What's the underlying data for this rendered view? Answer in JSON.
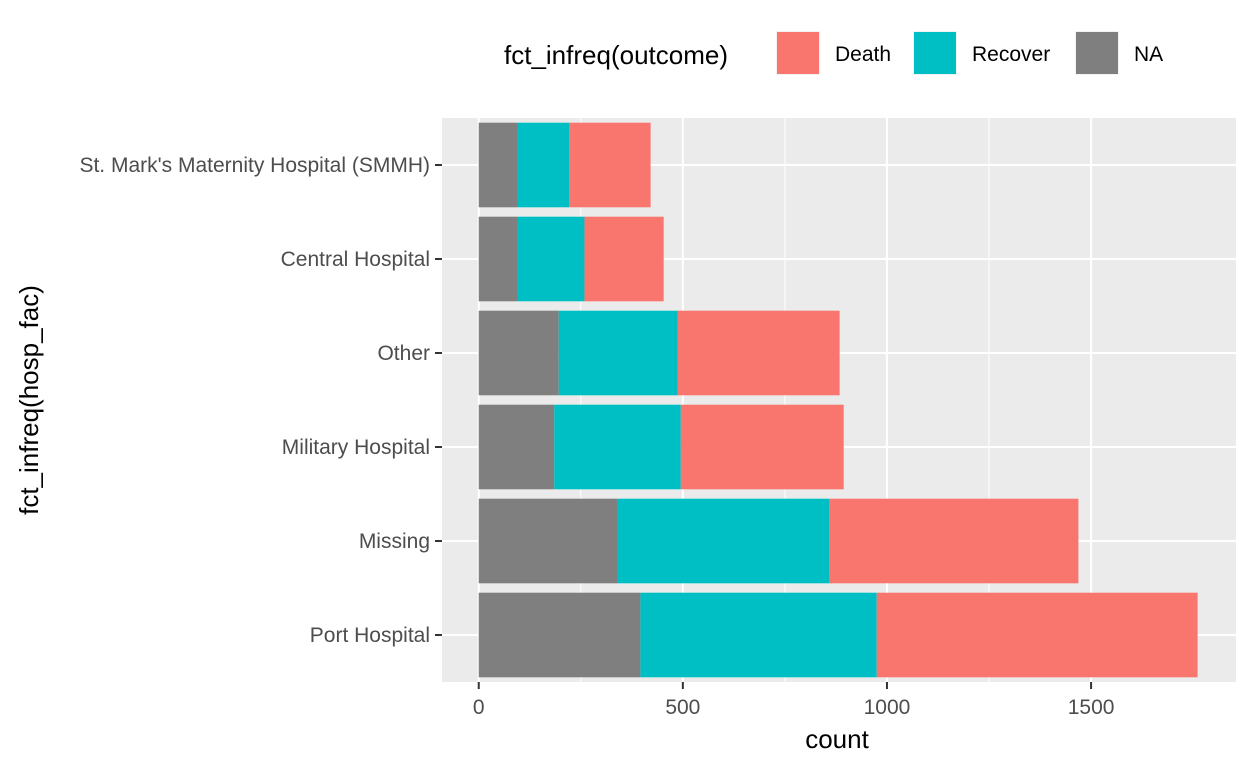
{
  "chart_data": {
    "type": "bar",
    "orientation": "horizontal",
    "stacked": true,
    "categories": [
      "St. Mark's Maternity Hospital (SMMH)",
      "Central Hospital",
      "Other",
      "Military Hospital",
      "Missing",
      "Port Hospital"
    ],
    "stack_order": [
      "NA",
      "Recover",
      "Death"
    ],
    "series": [
      {
        "name": "NA",
        "color": "#7f7f7f",
        "values": [
          95,
          95,
          196,
          185,
          340,
          396
        ]
      },
      {
        "name": "Recover",
        "color": "#00bfc4",
        "values": [
          127,
          164,
          291,
          310,
          518,
          579
        ]
      },
      {
        "name": "Death",
        "color": "#f8766d",
        "values": [
          199,
          194,
          397,
          399,
          611,
          786
        ]
      }
    ],
    "xlabel": "count",
    "ylabel": "fct_infreq(hosp_fac)",
    "xlim": [
      -90,
      1855
    ],
    "x_ticks": [
      0,
      500,
      1000,
      1500
    ],
    "grid": true,
    "panel_background": "#ebebeb",
    "legend": {
      "title": "fct_infreq(outcome)",
      "position": "top",
      "entries": [
        "Death",
        "Recover",
        "NA"
      ]
    }
  }
}
